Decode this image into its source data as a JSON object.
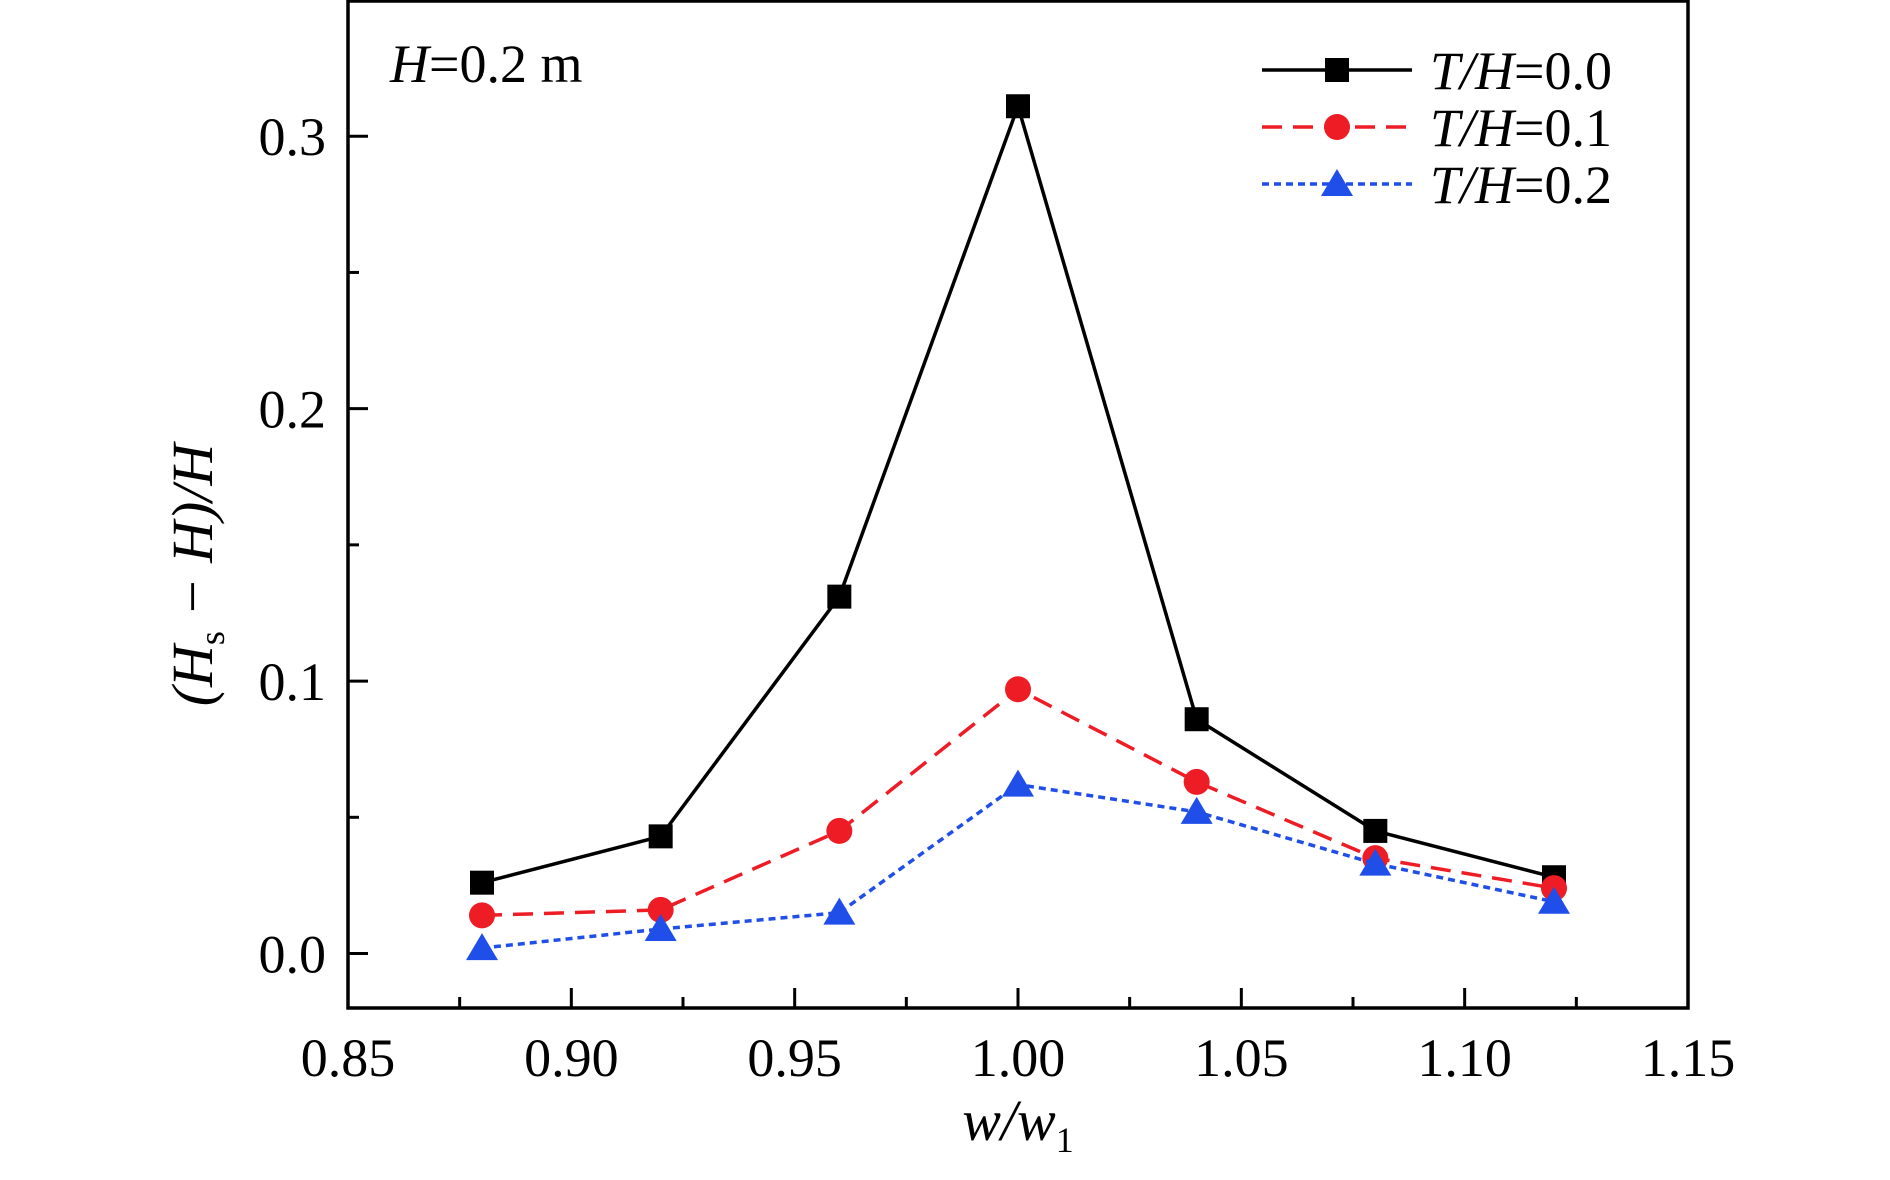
{
  "chart_data": {
    "type": "line",
    "annotation": "H=0.2 m",
    "xlabel": "w/w1",
    "ylabel": "(Hs − H)/H",
    "xlim": [
      0.85,
      1.15
    ],
    "ylim": [
      -0.02,
      0.35
    ],
    "x_ticks": [
      "0.85",
      "0.90",
      "0.95",
      "1.00",
      "1.05",
      "1.10",
      "1.15"
    ],
    "y_ticks": [
      "0.0",
      "0.1",
      "0.2",
      "0.3"
    ],
    "x": [
      0.88,
      0.92,
      0.96,
      1.0,
      1.04,
      1.08,
      1.12
    ],
    "grid": false,
    "legend_position": "top-right",
    "series": [
      {
        "name": "T/H=0.0",
        "values": [
          0.026,
          0.043,
          0.131,
          0.311,
          0.086,
          0.045,
          0.028
        ],
        "color": "#000000",
        "marker": "square",
        "line": "solid"
      },
      {
        "name": "T/H=0.1",
        "values": [
          0.014,
          0.016,
          0.045,
          0.097,
          0.063,
          0.035,
          0.024
        ],
        "color": "#ee1c25",
        "marker": "circle",
        "line": "dashed"
      },
      {
        "name": "T/H=0.2",
        "values": [
          0.002,
          0.009,
          0.015,
          0.062,
          0.052,
          0.033,
          0.019
        ],
        "color": "#1f4fe8",
        "marker": "triangle",
        "line": "dotted"
      }
    ]
  }
}
